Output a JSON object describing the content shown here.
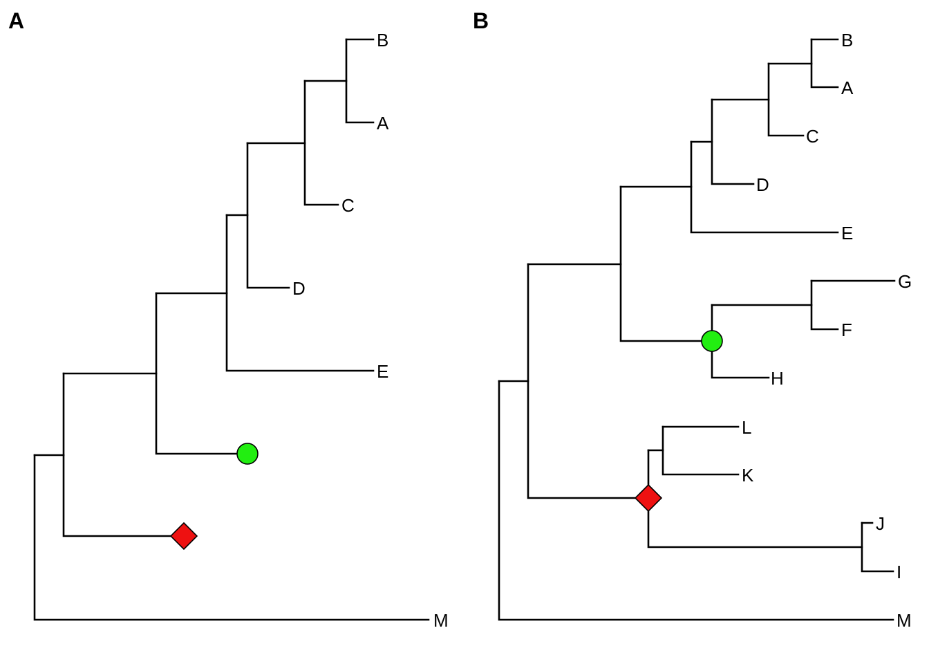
{
  "panels": [
    {
      "label": "A",
      "tips": [
        "B",
        "A",
        "C",
        "D",
        "E",
        "M"
      ],
      "markers": [
        {
          "shape": "circle",
          "color": "#22ee11"
        },
        {
          "shape": "diamond",
          "color": "#ee1111"
        }
      ]
    },
    {
      "label": "B",
      "tips": [
        "B",
        "A",
        "C",
        "D",
        "E",
        "G",
        "F",
        "H",
        "L",
        "K",
        "J",
        "I",
        "M"
      ],
      "markers": [
        {
          "shape": "circle",
          "color": "#22ee11"
        },
        {
          "shape": "diamond",
          "color": "#ee1111"
        }
      ]
    }
  ]
}
